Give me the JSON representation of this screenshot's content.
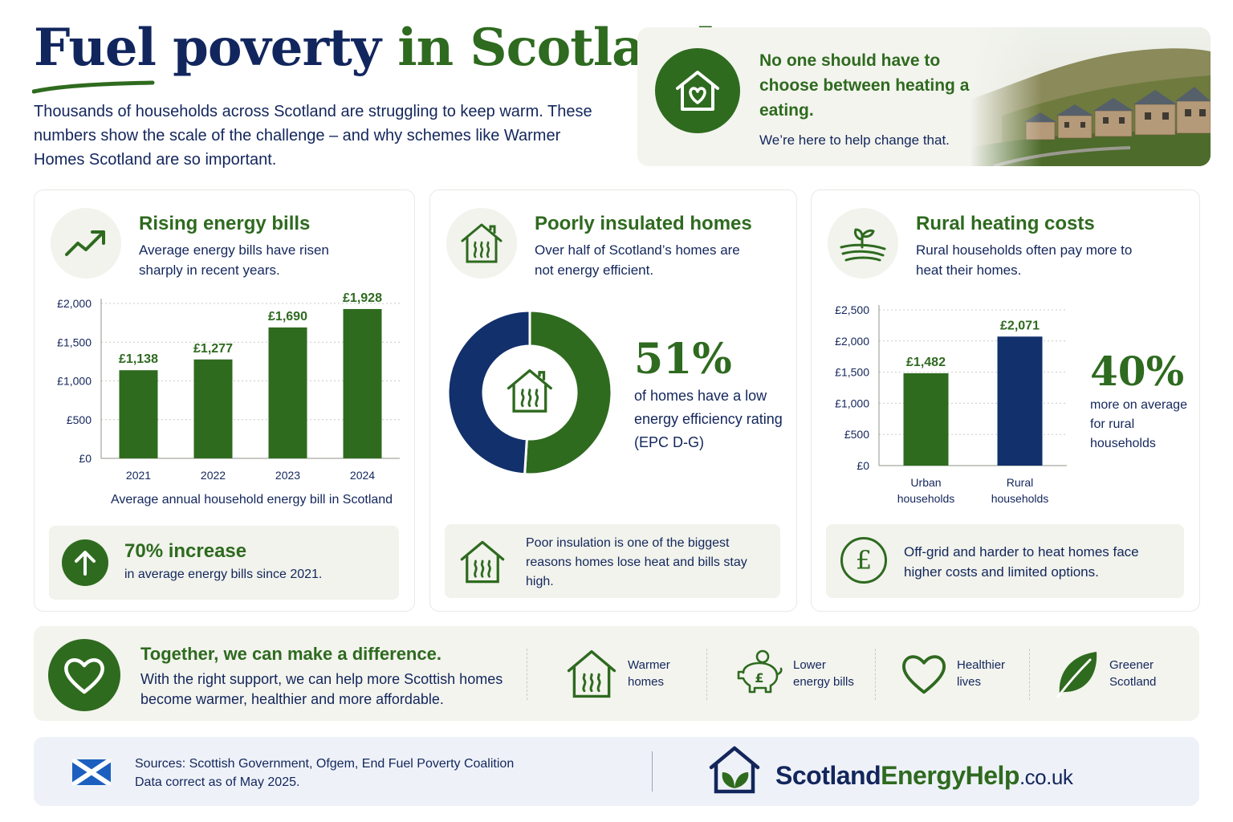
{
  "header": {
    "title_part1": "Fuel poverty",
    "title_part2": "in Scotland",
    "intro": "Thousands of households across Scotland are struggling to keep warm. These numbers show the scale of the challenge – and why schemes like Warmer Homes Scotland are so important."
  },
  "hero": {
    "quote": "No one should have to choose between heating and eating.",
    "sub": "We’re here to help change that."
  },
  "cards": {
    "bills": {
      "title": "Rising energy bills",
      "desc": "Average energy bills have risen sharply in recent years.",
      "caption": "Average annual household energy bill in Scotland",
      "note_title": "70% increase",
      "note_desc": "in average energy bills since 2021."
    },
    "insulation": {
      "title": "Poorly insulated homes",
      "desc": "Over half of Scotland’s homes are not energy efficient.",
      "stat": "51%",
      "stat_desc": "of homes have a low energy efficiency rating (EPC D-G)",
      "note": "Poor insulation is one of the biggest reasons homes lose heat and bills stay high."
    },
    "rural": {
      "title": "Rural heating costs",
      "desc": "Rural households often pay more to heat their homes.",
      "stat": "40%",
      "stat_desc": "more on average for rural households",
      "note": "Off-grid and harder to heat homes face higher costs and limited options."
    }
  },
  "chart_data": [
    {
      "type": "bar",
      "categories": [
        "2021",
        "2022",
        "2023",
        "2024"
      ],
      "values": [
        1138,
        1277,
        1690,
        1928
      ],
      "value_labels": [
        "£1,138",
        "£1,277",
        "£1,690",
        "£1,928"
      ],
      "yticks": [
        "£0",
        "£500",
        "£1,000",
        "£1,500",
        "£2,000"
      ],
      "ylim": [
        0,
        2000
      ],
      "xlabel": "Average annual household energy bill in Scotland",
      "color": "#2f6b1f",
      "grid": true
    },
    {
      "type": "pie",
      "donut": true,
      "values": [
        51,
        49
      ],
      "colors": [
        "#2f6b1f",
        "#12306b"
      ],
      "center_icon": "house-heat-icon"
    },
    {
      "type": "bar",
      "categories": [
        "Urban\nhouseholds",
        "Rural\nhouseholds"
      ],
      "values": [
        1482,
        2071
      ],
      "value_labels": [
        "£1,482",
        "£2,071"
      ],
      "colors": [
        "#2f6b1f",
        "#12306b"
      ],
      "yticks": [
        "£0",
        "£500",
        "£1,000",
        "£1,500",
        "£2,000",
        "£2,500"
      ],
      "ylim": [
        0,
        2500
      ],
      "grid": true
    }
  ],
  "band": {
    "title": "Together, we can make a difference.",
    "desc": "With the right support, we can help more Scottish homes become warmer, healthier and more affordable.",
    "benefits": [
      {
        "label": "Warmer\nhomes",
        "icon": "house-heat-icon"
      },
      {
        "label": "Lower\nenergy bills",
        "icon": "piggy-bank-icon"
      },
      {
        "label": "Healthier\nlives",
        "icon": "heart-icon"
      },
      {
        "label": "Greener\nScotland",
        "icon": "leaf-icon"
      }
    ]
  },
  "footer": {
    "sources": "Sources: Scottish Government, Ofgem, End Fuel Poverty Coalition",
    "date": "Data correct as of May 2025.",
    "brand_a": "Scotland",
    "brand_b": "EnergyHelp",
    "brand_c": ".co.uk"
  },
  "colors": {
    "green": "#2f6b1f",
    "navy": "#12306b",
    "panel": "#f3f4ee"
  }
}
